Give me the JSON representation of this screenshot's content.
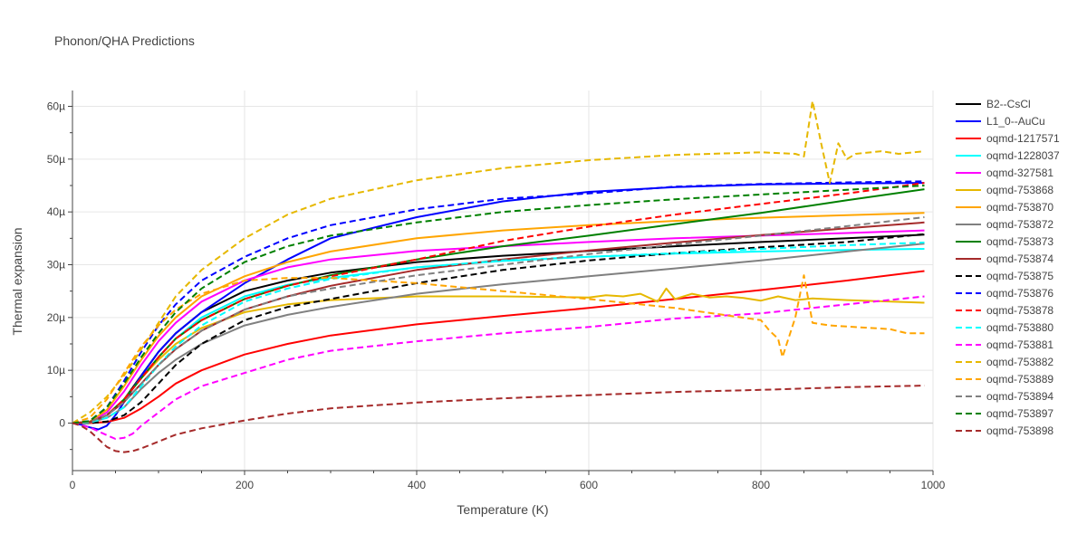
{
  "chart_data": {
    "type": "line",
    "title": "Phonon/QHA Predictions",
    "xlabel": "Temperature (K)",
    "ylabel": "Thermal expansion",
    "xlim": [
      0,
      1000
    ],
    "ylim": [
      -9,
      63
    ],
    "y_unit_suffix": "µ",
    "xticks": [
      0,
      200,
      400,
      600,
      800,
      1000
    ],
    "yticks": [
      0,
      10,
      20,
      30,
      40,
      50,
      60
    ],
    "grid": true,
    "legend_position": "right",
    "series": [
      {
        "name": "B2--CsCl",
        "color": "#000000",
        "dash": "solid",
        "x": [
          0,
          20,
          40,
          60,
          80,
          100,
          120,
          150,
          200,
          250,
          300,
          400,
          500,
          600,
          700,
          800,
          900,
          990
        ],
        "y": [
          0,
          0.2,
          1.5,
          4.5,
          9,
          13.5,
          17,
          21,
          25,
          27,
          28.5,
          30.5,
          31.7,
          32.6,
          33.5,
          34.3,
          35,
          35.7
        ]
      },
      {
        "name": "L1_0--AuCu",
        "color": "#0000ff",
        "dash": "solid",
        "x": [
          0,
          10,
          20,
          30,
          40,
          50,
          60,
          80,
          100,
          120,
          150,
          200,
          250,
          300,
          400,
          500,
          600,
          700,
          800,
          900,
          990
        ],
        "y": [
          0,
          -0.3,
          -0.8,
          -1.2,
          -0.5,
          1.5,
          4,
          9,
          13.5,
          17,
          21,
          26.5,
          31,
          35,
          39,
          42,
          43.8,
          44.7,
          45.2,
          45.4,
          45.5
        ]
      },
      {
        "name": "oqmd-1217571",
        "color": "#ff0000",
        "dash": "solid",
        "x": [
          0,
          20,
          40,
          60,
          80,
          100,
          120,
          150,
          200,
          250,
          300,
          400,
          500,
          600,
          700,
          800,
          900,
          990
        ],
        "y": [
          0,
          0,
          0.2,
          1,
          2.8,
          5,
          7.5,
          10,
          13,
          15,
          16.6,
          18.7,
          20.3,
          21.8,
          23.5,
          25.2,
          27,
          28.8
        ]
      },
      {
        "name": "oqmd-1228037",
        "color": "#00ffff",
        "dash": "solid",
        "x": [
          0,
          20,
          40,
          60,
          80,
          100,
          120,
          150,
          200,
          250,
          300,
          400,
          500,
          600,
          700,
          800,
          900,
          990
        ],
        "y": [
          0,
          0.2,
          1.5,
          4.5,
          8.5,
          12.5,
          16,
          20,
          24,
          26.2,
          27.5,
          29.5,
          30.7,
          31.5,
          32.1,
          32.5,
          32.8,
          33
        ]
      },
      {
        "name": "oqmd-327581",
        "color": "#ff00ff",
        "dash": "solid",
        "x": [
          0,
          20,
          40,
          60,
          80,
          100,
          120,
          150,
          200,
          250,
          300,
          400,
          500,
          600,
          700,
          800,
          900,
          990
        ],
        "y": [
          0,
          0.3,
          2,
          6,
          11,
          15.5,
          19,
          23,
          27,
          29.5,
          31,
          32.6,
          33.5,
          34.3,
          35,
          35.5,
          36,
          36.5
        ]
      },
      {
        "name": "oqmd-753868",
        "color": "#e6b800",
        "dash": "solid",
        "x": [
          0,
          20,
          40,
          60,
          80,
          100,
          120,
          150,
          200,
          250,
          300,
          400,
          500,
          600,
          620,
          640,
          660,
          680,
          690,
          700,
          720,
          740,
          760,
          780,
          800,
          820,
          840,
          860,
          900,
          990
        ],
        "y": [
          0,
          0.2,
          1.5,
          4.5,
          8.5,
          12,
          15,
          18,
          21,
          22.5,
          23.3,
          24,
          24,
          23.8,
          24.2,
          24,
          24.5,
          23,
          25.5,
          23.5,
          24.5,
          23.8,
          24,
          23.7,
          23.2,
          24,
          23.3,
          23.6,
          23.3,
          22.8
        ]
      },
      {
        "name": "oqmd-753870",
        "color": "#ffa500",
        "dash": "solid",
        "x": [
          0,
          20,
          40,
          60,
          80,
          100,
          120,
          150,
          200,
          250,
          300,
          400,
          500,
          600,
          700,
          800,
          900,
          990
        ],
        "y": [
          0,
          0.3,
          2.5,
          7,
          12,
          16.5,
          20,
          24,
          27.8,
          30.5,
          32.5,
          35,
          36.5,
          37.5,
          38.3,
          38.9,
          39.4,
          39.8
        ]
      },
      {
        "name": "oqmd-753872",
        "color": "#808080",
        "dash": "solid",
        "x": [
          0,
          20,
          40,
          60,
          80,
          100,
          120,
          150,
          200,
          250,
          300,
          400,
          500,
          600,
          700,
          800,
          900,
          990
        ],
        "y": [
          0,
          0.1,
          1,
          3,
          6.5,
          9.5,
          12,
          15,
          18.5,
          20.5,
          22,
          24.5,
          26.3,
          27.8,
          29.3,
          30.8,
          32.5,
          34
        ]
      },
      {
        "name": "oqmd-753873",
        "color": "#008000",
        "dash": "solid",
        "x": [
          0,
          20,
          40,
          60,
          80,
          100,
          120,
          150,
          200,
          250,
          300,
          400,
          500,
          600,
          700,
          800,
          900,
          990
        ],
        "y": [
          0,
          0.2,
          1.5,
          4.5,
          8.5,
          12.5,
          16,
          19.5,
          23.5,
          26,
          28,
          31,
          33.5,
          35.5,
          37.7,
          39.8,
          42.2,
          44.3
        ]
      },
      {
        "name": "oqmd-753874",
        "color": "#a52a2a",
        "dash": "solid",
        "x": [
          0,
          20,
          40,
          60,
          80,
          100,
          120,
          150,
          200,
          250,
          300,
          400,
          500,
          600,
          700,
          800,
          900,
          990
        ],
        "y": [
          0,
          0.2,
          1.5,
          4,
          7.5,
          11,
          14,
          17.5,
          21.5,
          24,
          26,
          29,
          31,
          32.7,
          34.2,
          35.6,
          36.9,
          38
        ]
      },
      {
        "name": "oqmd-753875",
        "color": "#000000",
        "dash": "dash",
        "x": [
          0,
          20,
          40,
          60,
          80,
          100,
          120,
          150,
          200,
          250,
          300,
          400,
          500,
          600,
          700,
          800,
          900,
          990
        ],
        "y": [
          0,
          0,
          0.3,
          1.5,
          4,
          7.5,
          11,
          15,
          19.5,
          22,
          23.5,
          26.5,
          29,
          30.8,
          32.2,
          33.3,
          34.3,
          35.8
        ]
      },
      {
        "name": "oqmd-753876",
        "color": "#0000ff",
        "dash": "dash",
        "x": [
          0,
          20,
          40,
          60,
          80,
          100,
          120,
          150,
          200,
          250,
          300,
          400,
          500,
          600,
          700,
          800,
          900,
          990
        ],
        "y": [
          0,
          0.4,
          3,
          8,
          13.5,
          18.5,
          22.5,
          27,
          31.5,
          35,
          37.5,
          40.5,
          42.5,
          43.5,
          44.8,
          45.3,
          45.6,
          45.8
        ]
      },
      {
        "name": "oqmd-753878",
        "color": "#ff0000",
        "dash": "dash",
        "x": [
          0,
          20,
          40,
          60,
          80,
          100,
          120,
          150,
          200,
          250,
          300,
          400,
          500,
          600,
          700,
          800,
          900,
          990
        ],
        "y": [
          0,
          0.2,
          1.5,
          4.5,
          8.5,
          12.5,
          16,
          19.5,
          23.5,
          26,
          27.8,
          31,
          34.5,
          37.2,
          39.5,
          41.5,
          43.5,
          45.5
        ]
      },
      {
        "name": "oqmd-753880",
        "color": "#00ffff",
        "dash": "dash",
        "x": [
          0,
          20,
          40,
          60,
          80,
          100,
          120,
          150,
          200,
          250,
          300,
          400,
          500,
          600,
          700,
          800,
          900,
          990
        ],
        "y": [
          0,
          0.1,
          1,
          3,
          7,
          11,
          14.5,
          18.5,
          23,
          25.5,
          27.3,
          29.5,
          30.8,
          31.5,
          32.2,
          33,
          33.7,
          34.2
        ]
      },
      {
        "name": "oqmd-753881",
        "color": "#ff00ff",
        "dash": "dash",
        "x": [
          0,
          20,
          40,
          50,
          60,
          70,
          80,
          100,
          120,
          150,
          200,
          250,
          300,
          400,
          500,
          600,
          700,
          800,
          900,
          990
        ],
        "y": [
          0,
          -0.8,
          -2.3,
          -3,
          -2.8,
          -2,
          -0.5,
          2,
          4.5,
          7,
          9.5,
          12,
          13.7,
          15.5,
          17,
          18.2,
          19.8,
          20.8,
          22.5,
          24
        ]
      },
      {
        "name": "oqmd-753882",
        "color": "#e6b800",
        "dash": "dash",
        "x": [
          0,
          20,
          40,
          60,
          80,
          100,
          120,
          150,
          200,
          250,
          300,
          400,
          500,
          600,
          700,
          800,
          840,
          850,
          860,
          870,
          880,
          890,
          900,
          910,
          940,
          960,
          990
        ],
        "y": [
          0,
          2,
          5,
          9,
          14,
          19,
          24,
          29,
          35,
          39.5,
          42.5,
          46,
          48.3,
          49.8,
          50.8,
          51.3,
          51,
          50.5,
          61,
          53,
          45.5,
          53,
          50,
          51,
          51.5,
          51,
          51.5
        ]
      },
      {
        "name": "oqmd-753889",
        "color": "#ffa500",
        "dash": "dash",
        "x": [
          0,
          20,
          40,
          60,
          80,
          100,
          120,
          150,
          200,
          250,
          300,
          400,
          500,
          600,
          700,
          800,
          810,
          820,
          825,
          830,
          840,
          850,
          860,
          880,
          900,
          950,
          970,
          990
        ],
        "y": [
          0,
          1,
          4.5,
          9.5,
          14.5,
          18.5,
          21.5,
          24.5,
          27,
          27.5,
          27.5,
          26.5,
          25,
          23.5,
          21.8,
          19.5,
          17.5,
          16,
          12.5,
          15,
          20,
          28,
          19,
          18.5,
          18.3,
          17.8,
          17,
          17
        ]
      },
      {
        "name": "oqmd-753894",
        "color": "#808080",
        "dash": "dash",
        "x": [
          0,
          20,
          40,
          60,
          80,
          100,
          120,
          150,
          200,
          250,
          300,
          400,
          500,
          600,
          700,
          800,
          900,
          990
        ],
        "y": [
          0,
          0.2,
          1.5,
          4,
          7.5,
          11,
          14,
          17.5,
          21.5,
          24,
          25.5,
          28,
          30,
          32,
          33.8,
          35.5,
          37.3,
          39
        ]
      },
      {
        "name": "oqmd-753897",
        "color": "#008000",
        "dash": "dash",
        "x": [
          0,
          20,
          40,
          60,
          80,
          100,
          120,
          150,
          200,
          250,
          300,
          400,
          500,
          600,
          700,
          800,
          900,
          990
        ],
        "y": [
          0,
          0.4,
          3,
          7.5,
          12.5,
          17,
          21,
          25.5,
          30.5,
          33.5,
          35.5,
          38,
          40,
          41.3,
          42.4,
          43.3,
          44.2,
          45
        ]
      },
      {
        "name": "oqmd-753898",
        "color": "#a52a2a",
        "dash": "dash",
        "x": [
          0,
          10,
          20,
          30,
          40,
          50,
          60,
          70,
          80,
          100,
          120,
          150,
          200,
          250,
          300,
          400,
          500,
          600,
          700,
          800,
          900,
          990
        ],
        "y": [
          0,
          -0.5,
          -1.5,
          -3,
          -4.5,
          -5.3,
          -5.5,
          -5.3,
          -4.8,
          -3.5,
          -2.2,
          -1,
          0.5,
          1.8,
          2.8,
          3.9,
          4.7,
          5.3,
          5.9,
          6.3,
          6.8,
          7.1
        ]
      }
    ]
  }
}
